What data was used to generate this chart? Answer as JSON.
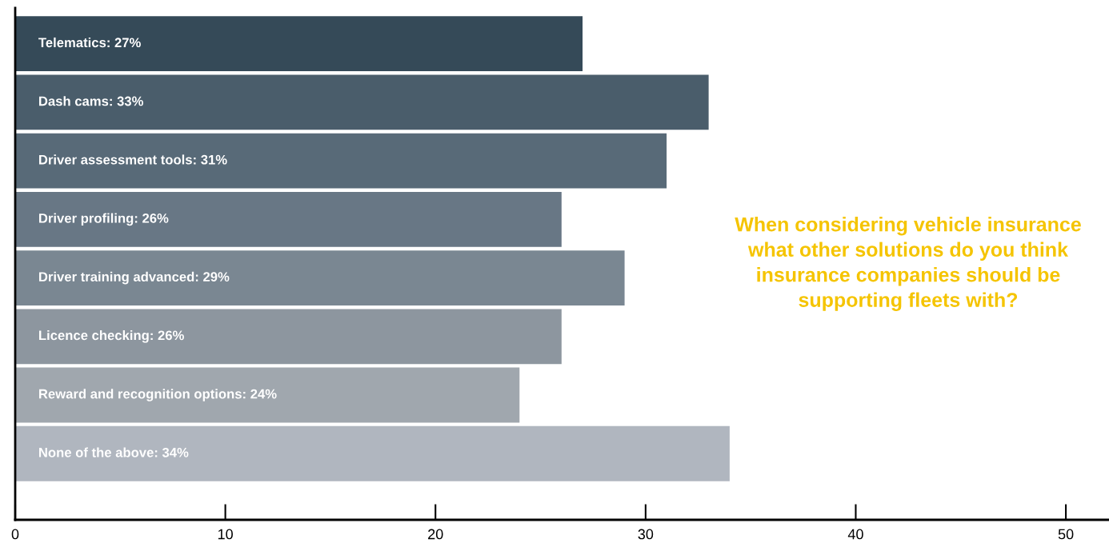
{
  "chart_data": {
    "type": "bar",
    "orientation": "horizontal",
    "title": "When considering vehicle insurance\nwhat other solutions do you think\ninsurance companies should be\nsupporting fleets with?",
    "categories": [
      null,
      null,
      null,
      null,
      null,
      null,
      null,
      null
    ],
    "values": [
      27,
      33,
      31,
      26,
      29,
      26,
      24,
      34
    ],
    "value_labels": [
      "Telematics: 27%",
      "Dash cams: 33%",
      "Driver assessment tools: 31%",
      "Driver profiling: 26%",
      "Driver training advanced: 29%",
      "Licence checking: 26%",
      "Reward and recognition options: 24%",
      "None of the above: 34%"
    ],
    "colors": [
      "#354a58",
      "#4a5d6b",
      "#586a78",
      "#687785",
      "#7a8792",
      "#8d969f",
      "#a0a7ae",
      "#b0b6bf"
    ],
    "xlim": [
      0,
      52
    ],
    "xticks": [
      0,
      10,
      20,
      30,
      40,
      50
    ],
    "grid": false,
    "legend": false
  }
}
